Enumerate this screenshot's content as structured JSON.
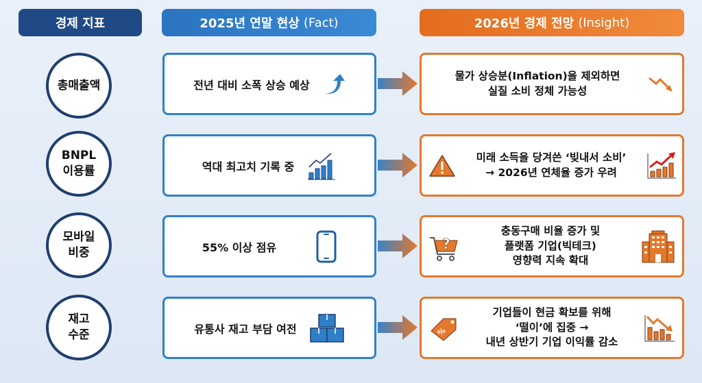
{
  "headers": {
    "indicator": "경제 지표",
    "fact": "2025년 연말 현상",
    "fact_sub": "(Fact)",
    "insight": "2026년 경제 전망",
    "insight_sub": "(Insight)"
  },
  "colors": {
    "navy": "#1f4a85",
    "blue": "#2f7fc8",
    "orange": "#e4782c"
  },
  "rows": [
    {
      "indicator": [
        "총매출액"
      ],
      "fact": "전년 대비 소폭 상승 예상",
      "fact_icon": "curved-up-arrow-icon",
      "insight": [
        "물가 상승분(Inflation)을 제외하면",
        "실질 소비 정체 가능성"
      ],
      "insight_icon": "zigzag-down-arrow-icon"
    },
    {
      "indicator": [
        "BNPL",
        "이용률"
      ],
      "fact": "역대 최고치 기록 중",
      "fact_icon": "rising-bar-chart-icon",
      "insight": [
        "미래 소득을 당겨쓴 ‘빚내서 소비’",
        "→ 2026년 연체율 증가 우려"
      ],
      "insight_left_icon": "warning-icon",
      "insight_icon": "rising-chart-red-arrow-icon"
    },
    {
      "indicator": [
        "모바일",
        "비중"
      ],
      "fact": "55% 이상 점유",
      "fact_icon": "smartphone-icon",
      "insight": [
        "충동구매 비율 증가 및",
        "플랫폼 기업(빅테크)",
        "영향력 지속 확대"
      ],
      "insight_left_icon": "shopping-cart-question-icon",
      "insight_icon": "office-building-icon"
    },
    {
      "indicator": [
        "재고",
        "수준"
      ],
      "fact": "유통사 재고 부담 여전",
      "fact_icon": "stacked-boxes-icon",
      "insight": [
        "기업들이 현금 확보를 위해",
        "‘떨이’에 집중 →",
        "내년 상반기 기업 이익률 감소"
      ],
      "insight_left_icon": "discount-tag-icon",
      "insight_icon": "falling-bar-chart-icon"
    }
  ]
}
